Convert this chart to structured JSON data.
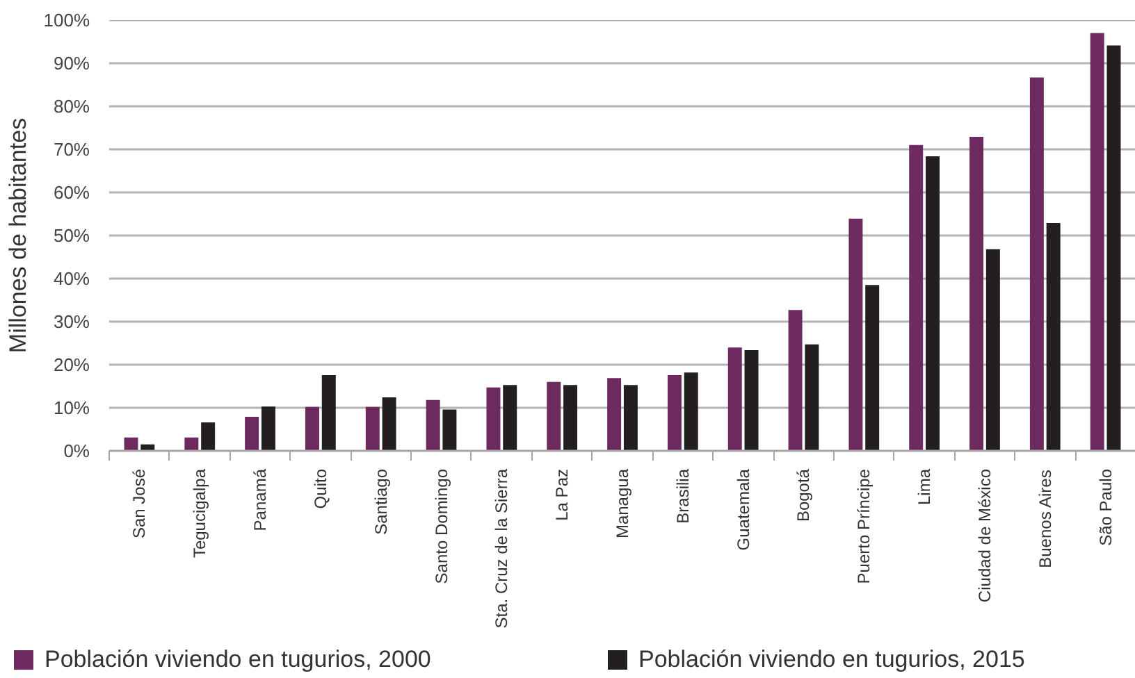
{
  "chart_data": {
    "type": "bar",
    "ylabel": "Millones de habitantes",
    "categories": [
      "San José",
      "Tegucigalpa",
      "Panamá",
      "Quito",
      "Santiago",
      "Santo Domingo",
      "Sta. Cruz de la Sierra",
      "La Paz",
      "Managua",
      "Brasilia",
      "Guatemala",
      "Bogotá",
      "Puerto Príncipe",
      "Lima",
      "Ciudad de México",
      "Buenos Aires",
      "São Paulo"
    ],
    "series": [
      {
        "name": "Población viviendo en tugurios, 2000",
        "color": "#6d2a5f",
        "values": [
          3.1,
          3.1,
          7.9,
          10.2,
          10.2,
          11.8,
          14.7,
          16.0,
          16.9,
          17.6,
          24.0,
          32.7,
          53.9,
          71.0,
          72.9,
          86.7,
          97.0
        ]
      },
      {
        "name": "Población viviendo en tugurios, 2015",
        "color": "#231f20",
        "values": [
          1.5,
          6.6,
          10.3,
          17.6,
          12.4,
          9.6,
          15.3,
          15.3,
          15.3,
          18.2,
          23.4,
          24.7,
          38.5,
          68.4,
          46.8,
          52.9,
          94.1
        ]
      }
    ],
    "ylim": [
      0,
      100
    ],
    "yticks": [
      {
        "value": 0,
        "label": "0%"
      },
      {
        "value": 10,
        "label": "10%"
      },
      {
        "value": 20,
        "label": "20%"
      },
      {
        "value": 30,
        "label": "30%"
      },
      {
        "value": 40,
        "label": "40%"
      },
      {
        "value": 50,
        "label": "50%"
      },
      {
        "value": 60,
        "label": "60%"
      },
      {
        "value": 70,
        "label": "70%"
      },
      {
        "value": 80,
        "label": "80%"
      },
      {
        "value": 90,
        "label": "90%"
      },
      {
        "value": 100,
        "label": "100%"
      }
    ],
    "grid": "y",
    "legend": "bottom"
  }
}
